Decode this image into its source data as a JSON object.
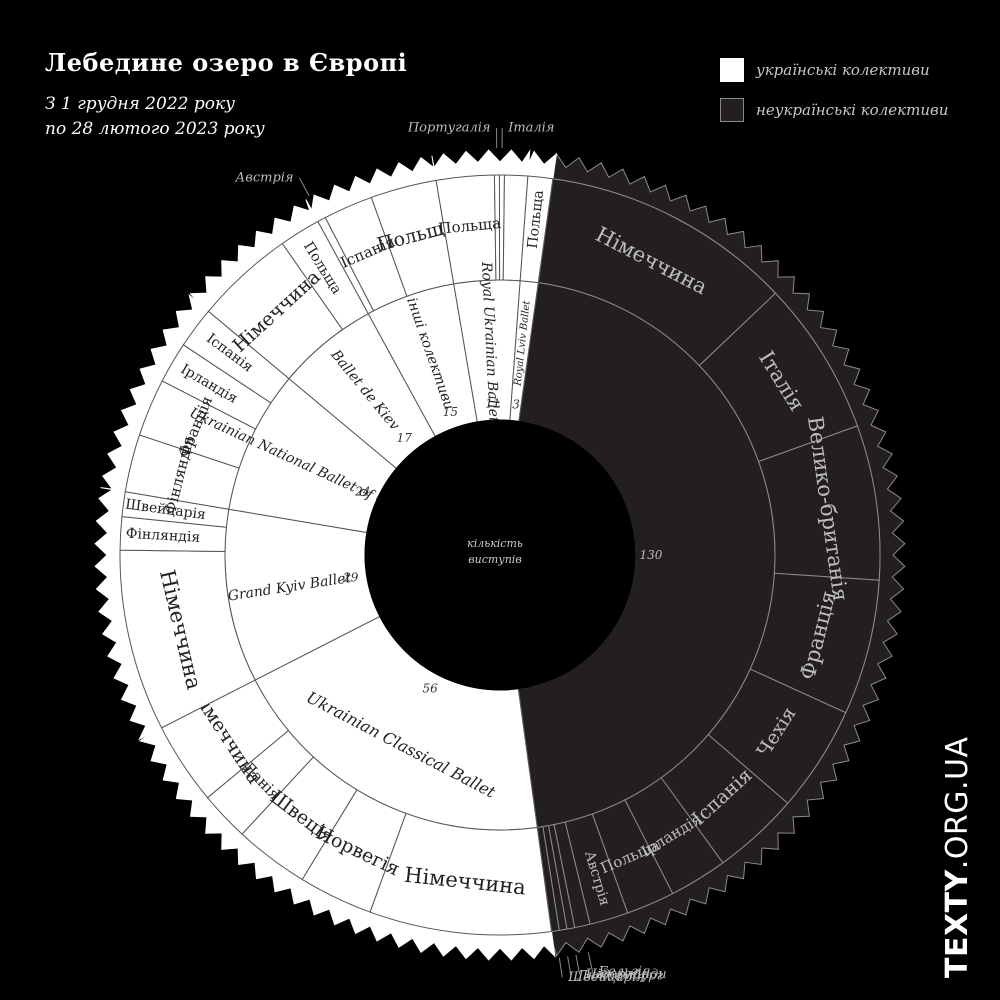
{
  "header": {
    "title": "Лебедине озеро в Європі",
    "subtitle_line1": "З 1 грудня 2022 року",
    "subtitle_line2": "по 28 лютого 2023 року"
  },
  "legend": {
    "ukrainian": "українські колективи",
    "non_ukrainian": "неукраїнські колективи"
  },
  "brand": {
    "bold": "TEXTY",
    "rest": ".ORG.UA"
  },
  "colors": {
    "background": "#000000",
    "ukrainian": "#ffffff",
    "non_ukrainian": "#231f20",
    "outline": "#8a8a8a"
  },
  "chart_data": {
    "type": "sunburst",
    "center_label": "кількість виступів",
    "groups": [
      {
        "name": "",
        "category": "неукраїнські колективи",
        "value": 130,
        "label_value": "130",
        "countries": [
          {
            "name": "Німеччина",
            "weight": 26
          },
          {
            "name": "Італія",
            "weight": 16
          },
          {
            "name": "Велико-британія",
            "weight": 16
          },
          {
            "name": "Франція",
            "weight": 14
          },
          {
            "name": "Чехія",
            "weight": 11
          },
          {
            "name": "Іспанія",
            "weight": 9
          },
          {
            "name": "Ірландія",
            "weight": 6
          },
          {
            "name": "Польща",
            "weight": 5
          },
          {
            "name": "Австрія",
            "weight": 4
          },
          {
            "name": "Бельгія",
            "weight": 1.6
          },
          {
            "name": "Нідерланди",
            "weight": 0.8
          },
          {
            "name": "Люксембург",
            "weight": 0.8
          },
          {
            "name": "Швейцарія",
            "weight": 0.8
          }
        ]
      },
      {
        "name": "Ukrainian Classical Ballet",
        "category": "українські колективи",
        "value": 56,
        "label_value": "56",
        "countries": [
          {
            "name": "Німеччина",
            "weight": 22
          },
          {
            "name": "Норвегія",
            "weight": 9
          },
          {
            "name": "Швеція",
            "weight": 9
          },
          {
            "name": "Данія",
            "weight": 6
          },
          {
            "name": "Німеччина",
            "weight": 10
          }
        ]
      },
      {
        "name": "Grand Kyiv Ballet",
        "category": "українські колективи",
        "value": 29,
        "label_value": "29",
        "countries": [
          {
            "name": "Німеччина",
            "weight": 22
          },
          {
            "name": "Фінляндія",
            "weight": 4
          },
          {
            "name": "Швейцарія",
            "weight": 3
          }
        ]
      },
      {
        "name": "Ukrainian National Ballet of Odessa",
        "category": "українські колективи",
        "value": 24,
        "label_value": "24",
        "countries": [
          {
            "name": "Фінляндія",
            "weight": 7
          },
          {
            "name": "Франція",
            "weight": 7
          },
          {
            "name": "Ірландія",
            "weight": 5
          },
          {
            "name": "Іспанія",
            "weight": 5
          }
        ]
      },
      {
        "name": "Ballet de Kiev",
        "category": "українські колективи",
        "value": 17,
        "label_value": "17",
        "countries": [
          {
            "name": "Німеччина",
            "weight": 12
          },
          {
            "name": "Польща",
            "weight": 5
          }
        ]
      },
      {
        "name": "інші колективи",
        "category": "українські колективи",
        "value": 15,
        "label_value": "15",
        "countries": [
          {
            "name": "Австрія",
            "weight": 1
          },
          {
            "name": "Іспанія",
            "weight": 6
          },
          {
            "name": "Польща",
            "weight": 8
          }
        ]
      },
      {
        "name": "Royal Ukrainian Ballet",
        "category": "українські колективи",
        "value": 11,
        "label_value": "11",
        "countries": [
          {
            "name": "Польща",
            "weight": 7
          },
          {
            "name": "Португалія",
            "weight": 0.6
          },
          {
            "name": "Італія",
            "weight": 0.6
          },
          {
            "name": "",
            "weight": 2.8
          }
        ]
      },
      {
        "name": "Royal Lviv Ballet",
        "category": "українські колективи",
        "value": 3,
        "label_value": "3",
        "countries": [
          {
            "name": "Польща",
            "weight": 3
          }
        ]
      }
    ]
  }
}
